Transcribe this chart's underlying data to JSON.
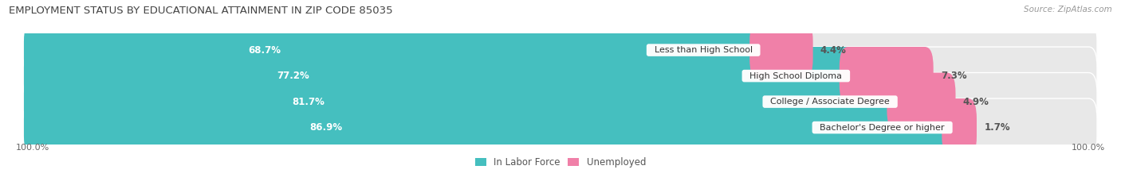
{
  "title": "EMPLOYMENT STATUS BY EDUCATIONAL ATTAINMENT IN ZIP CODE 85035",
  "source": "Source: ZipAtlas.com",
  "categories": [
    "Less than High School",
    "High School Diploma",
    "College / Associate Degree",
    "Bachelor's Degree or higher"
  ],
  "in_labor_force": [
    68.7,
    77.2,
    81.7,
    86.9
  ],
  "unemployed": [
    4.4,
    7.3,
    4.9,
    1.7
  ],
  "color_labor": "#45BFBF",
  "color_unemployed": "#F080A8",
  "color_bg_bar": "#E8E8E8",
  "x_left_label": "100.0%",
  "x_right_label": "100.0%",
  "legend_labor": "In Labor Force",
  "legend_unemployed": "Unemployed",
  "title_fontsize": 9.5,
  "source_fontsize": 7.5,
  "bar_label_fontsize": 8.5,
  "category_fontsize": 8,
  "axis_label_fontsize": 8,
  "figsize": [
    14.06,
    2.33
  ],
  "dpi": 100
}
